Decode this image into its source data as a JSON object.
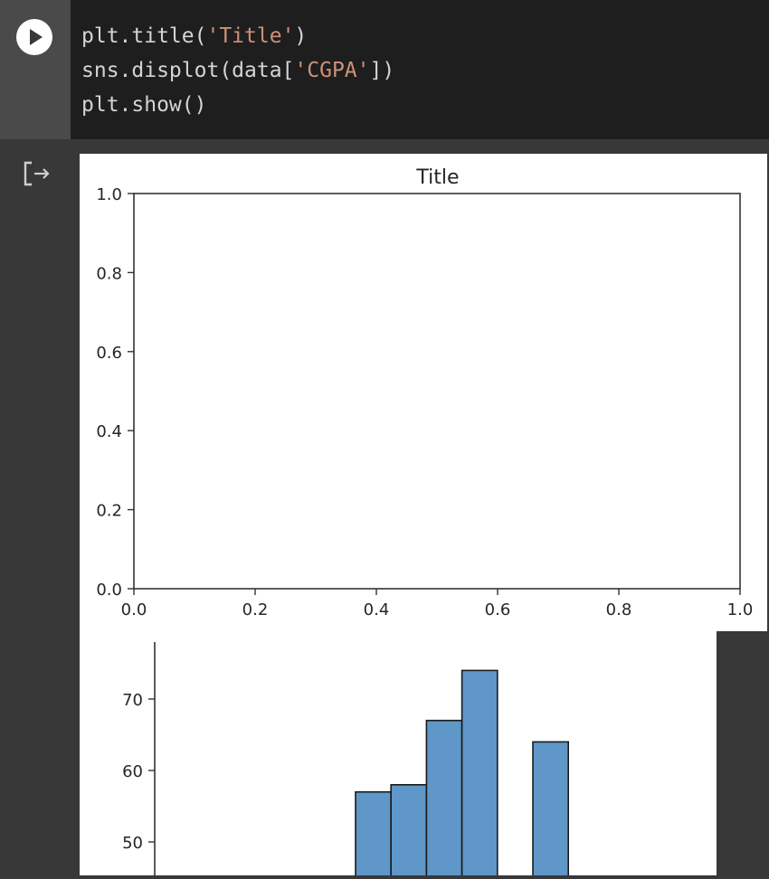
{
  "code_cell": {
    "lines": [
      {
        "pre": "plt.title(",
        "str": "'Title'",
        "post": ")"
      },
      {
        "pre": "sns.displot(data[",
        "str": "'CGPA'",
        "post": "])"
      },
      {
        "pre": "plt.show()",
        "str": "",
        "post": ""
      }
    ],
    "run_icon": "play-icon",
    "output_icon": "output-redirect-icon"
  },
  "chart_data": [
    {
      "type": "line",
      "title": "Title",
      "xlabel": "",
      "ylabel": "",
      "xlim": [
        0.0,
        1.0
      ],
      "ylim": [
        0.0,
        1.0
      ],
      "x_ticks": [
        "0.0",
        "0.2",
        "0.4",
        "0.6",
        "0.8",
        "1.0"
      ],
      "y_ticks": [
        "0.0",
        "0.2",
        "0.4",
        "0.6",
        "0.8",
        "1.0"
      ],
      "series": []
    },
    {
      "type": "bar",
      "title": "",
      "xlabel": "",
      "ylabel": "",
      "y_ticks": [
        50,
        60,
        70
      ],
      "ylim_visible": [
        44,
        78
      ],
      "bars": [
        57,
        58,
        67,
        74,
        0,
        64
      ],
      "bar_color": "#5e97c8"
    }
  ]
}
